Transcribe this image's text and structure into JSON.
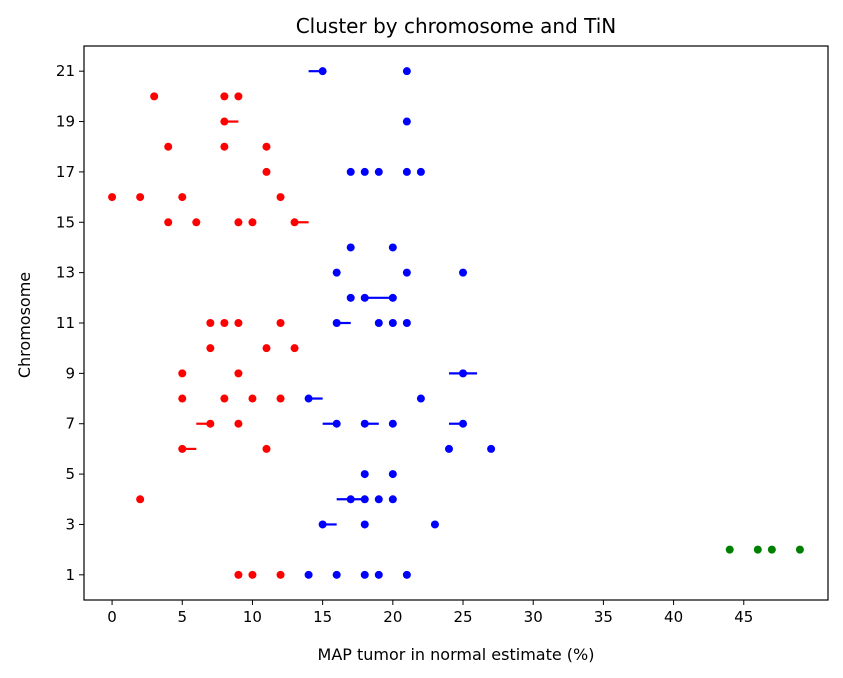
{
  "chart_data": {
    "type": "scatter",
    "title": "Cluster by chromosome and TiN",
    "xlabel": "MAP tumor in normal estimate (%)",
    "ylabel": "Chromosome",
    "xlim": [
      -2,
      51
    ],
    "ylim": [
      0,
      22
    ],
    "xticks": [
      0,
      5,
      10,
      15,
      20,
      25,
      30,
      35,
      40,
      45
    ],
    "yticks": [
      1,
      3,
      5,
      7,
      9,
      11,
      13,
      15,
      17,
      19,
      21
    ],
    "grid": false,
    "legend": "none",
    "series": [
      {
        "color": "#ff0000",
        "points": [
          {
            "x": 9,
            "y": 1
          },
          {
            "x": 10,
            "y": 1
          },
          {
            "x": 12,
            "y": 1
          },
          {
            "x": 2,
            "y": 4
          },
          {
            "x": 5,
            "y": 6
          },
          {
            "x": 11,
            "y": 6
          },
          {
            "x": 7,
            "y": 7
          },
          {
            "x": 9,
            "y": 7
          },
          {
            "x": 5,
            "y": 8
          },
          {
            "x": 8,
            "y": 8
          },
          {
            "x": 10,
            "y": 8
          },
          {
            "x": 12,
            "y": 8
          },
          {
            "x": 5,
            "y": 9
          },
          {
            "x": 9,
            "y": 9
          },
          {
            "x": 7,
            "y": 10
          },
          {
            "x": 11,
            "y": 10
          },
          {
            "x": 13,
            "y": 10
          },
          {
            "x": 7,
            "y": 11
          },
          {
            "x": 8,
            "y": 11
          },
          {
            "x": 9,
            "y": 11
          },
          {
            "x": 12,
            "y": 11
          },
          {
            "x": 4,
            "y": 15
          },
          {
            "x": 6,
            "y": 15
          },
          {
            "x": 9,
            "y": 15
          },
          {
            "x": 10,
            "y": 15
          },
          {
            "x": 13,
            "y": 15
          },
          {
            "x": 0,
            "y": 16
          },
          {
            "x": 2,
            "y": 16
          },
          {
            "x": 5,
            "y": 16
          },
          {
            "x": 12,
            "y": 16
          },
          {
            "x": 11,
            "y": 17
          },
          {
            "x": 4,
            "y": 18
          },
          {
            "x": 8,
            "y": 18
          },
          {
            "x": 11,
            "y": 18
          },
          {
            "x": 8,
            "y": 19
          },
          {
            "x": 3,
            "y": 20
          },
          {
            "x": 8,
            "y": 20
          },
          {
            "x": 9,
            "y": 20
          }
        ],
        "errorbars": [
          {
            "x0": 5,
            "x1": 6,
            "y": 6
          },
          {
            "x0": 6,
            "x1": 7,
            "y": 7
          },
          {
            "x0": 13,
            "x1": 14,
            "y": 15
          },
          {
            "x0": 8,
            "x1": 9,
            "y": 19
          }
        ]
      },
      {
        "color": "#0000ff",
        "points": [
          {
            "x": 14,
            "y": 1
          },
          {
            "x": 16,
            "y": 1
          },
          {
            "x": 18,
            "y": 1
          },
          {
            "x": 19,
            "y": 1
          },
          {
            "x": 21,
            "y": 1
          },
          {
            "x": 15,
            "y": 3
          },
          {
            "x": 18,
            "y": 3
          },
          {
            "x": 23,
            "y": 3
          },
          {
            "x": 17,
            "y": 4
          },
          {
            "x": 18,
            "y": 4
          },
          {
            "x": 19,
            "y": 4
          },
          {
            "x": 20,
            "y": 4
          },
          {
            "x": 18,
            "y": 5
          },
          {
            "x": 20,
            "y": 5
          },
          {
            "x": 24,
            "y": 6
          },
          {
            "x": 27,
            "y": 6
          },
          {
            "x": 16,
            "y": 7
          },
          {
            "x": 18,
            "y": 7
          },
          {
            "x": 20,
            "y": 7
          },
          {
            "x": 25,
            "y": 7
          },
          {
            "x": 14,
            "y": 8
          },
          {
            "x": 22,
            "y": 8
          },
          {
            "x": 25,
            "y": 9
          },
          {
            "x": 16,
            "y": 11
          },
          {
            "x": 19,
            "y": 11
          },
          {
            "x": 20,
            "y": 11
          },
          {
            "x": 21,
            "y": 11
          },
          {
            "x": 17,
            "y": 12
          },
          {
            "x": 18,
            "y": 12
          },
          {
            "x": 20,
            "y": 12
          },
          {
            "x": 16,
            "y": 13
          },
          {
            "x": 21,
            "y": 13
          },
          {
            "x": 25,
            "y": 13
          },
          {
            "x": 17,
            "y": 14
          },
          {
            "x": 20,
            "y": 14
          },
          {
            "x": 17,
            "y": 17
          },
          {
            "x": 18,
            "y": 17
          },
          {
            "x": 19,
            "y": 17
          },
          {
            "x": 21,
            "y": 17
          },
          {
            "x": 22,
            "y": 17
          },
          {
            "x": 21,
            "y": 19
          },
          {
            "x": 15,
            "y": 21
          },
          {
            "x": 21,
            "y": 21
          }
        ],
        "errorbars": [
          {
            "x0": 13.8,
            "x1": 14.2,
            "y": 1
          },
          {
            "x0": 15,
            "x1": 16,
            "y": 3
          },
          {
            "x0": 16,
            "x1": 18,
            "y": 4
          },
          {
            "x0": 15,
            "x1": 16,
            "y": 7
          },
          {
            "x0": 18,
            "x1": 19,
            "y": 7
          },
          {
            "x0": 24,
            "x1": 25,
            "y": 7
          },
          {
            "x0": 14,
            "x1": 15,
            "y": 8
          },
          {
            "x0": 24,
            "x1": 26,
            "y": 9
          },
          {
            "x0": 16,
            "x1": 17,
            "y": 11
          },
          {
            "x0": 18,
            "x1": 20,
            "y": 12
          },
          {
            "x0": 14,
            "x1": 15,
            "y": 21
          }
        ]
      },
      {
        "color": "#008000",
        "points": [
          {
            "x": 44,
            "y": 2
          },
          {
            "x": 46,
            "y": 2
          },
          {
            "x": 47,
            "y": 2
          },
          {
            "x": 49,
            "y": 2
          }
        ],
        "errorbars": []
      }
    ]
  }
}
